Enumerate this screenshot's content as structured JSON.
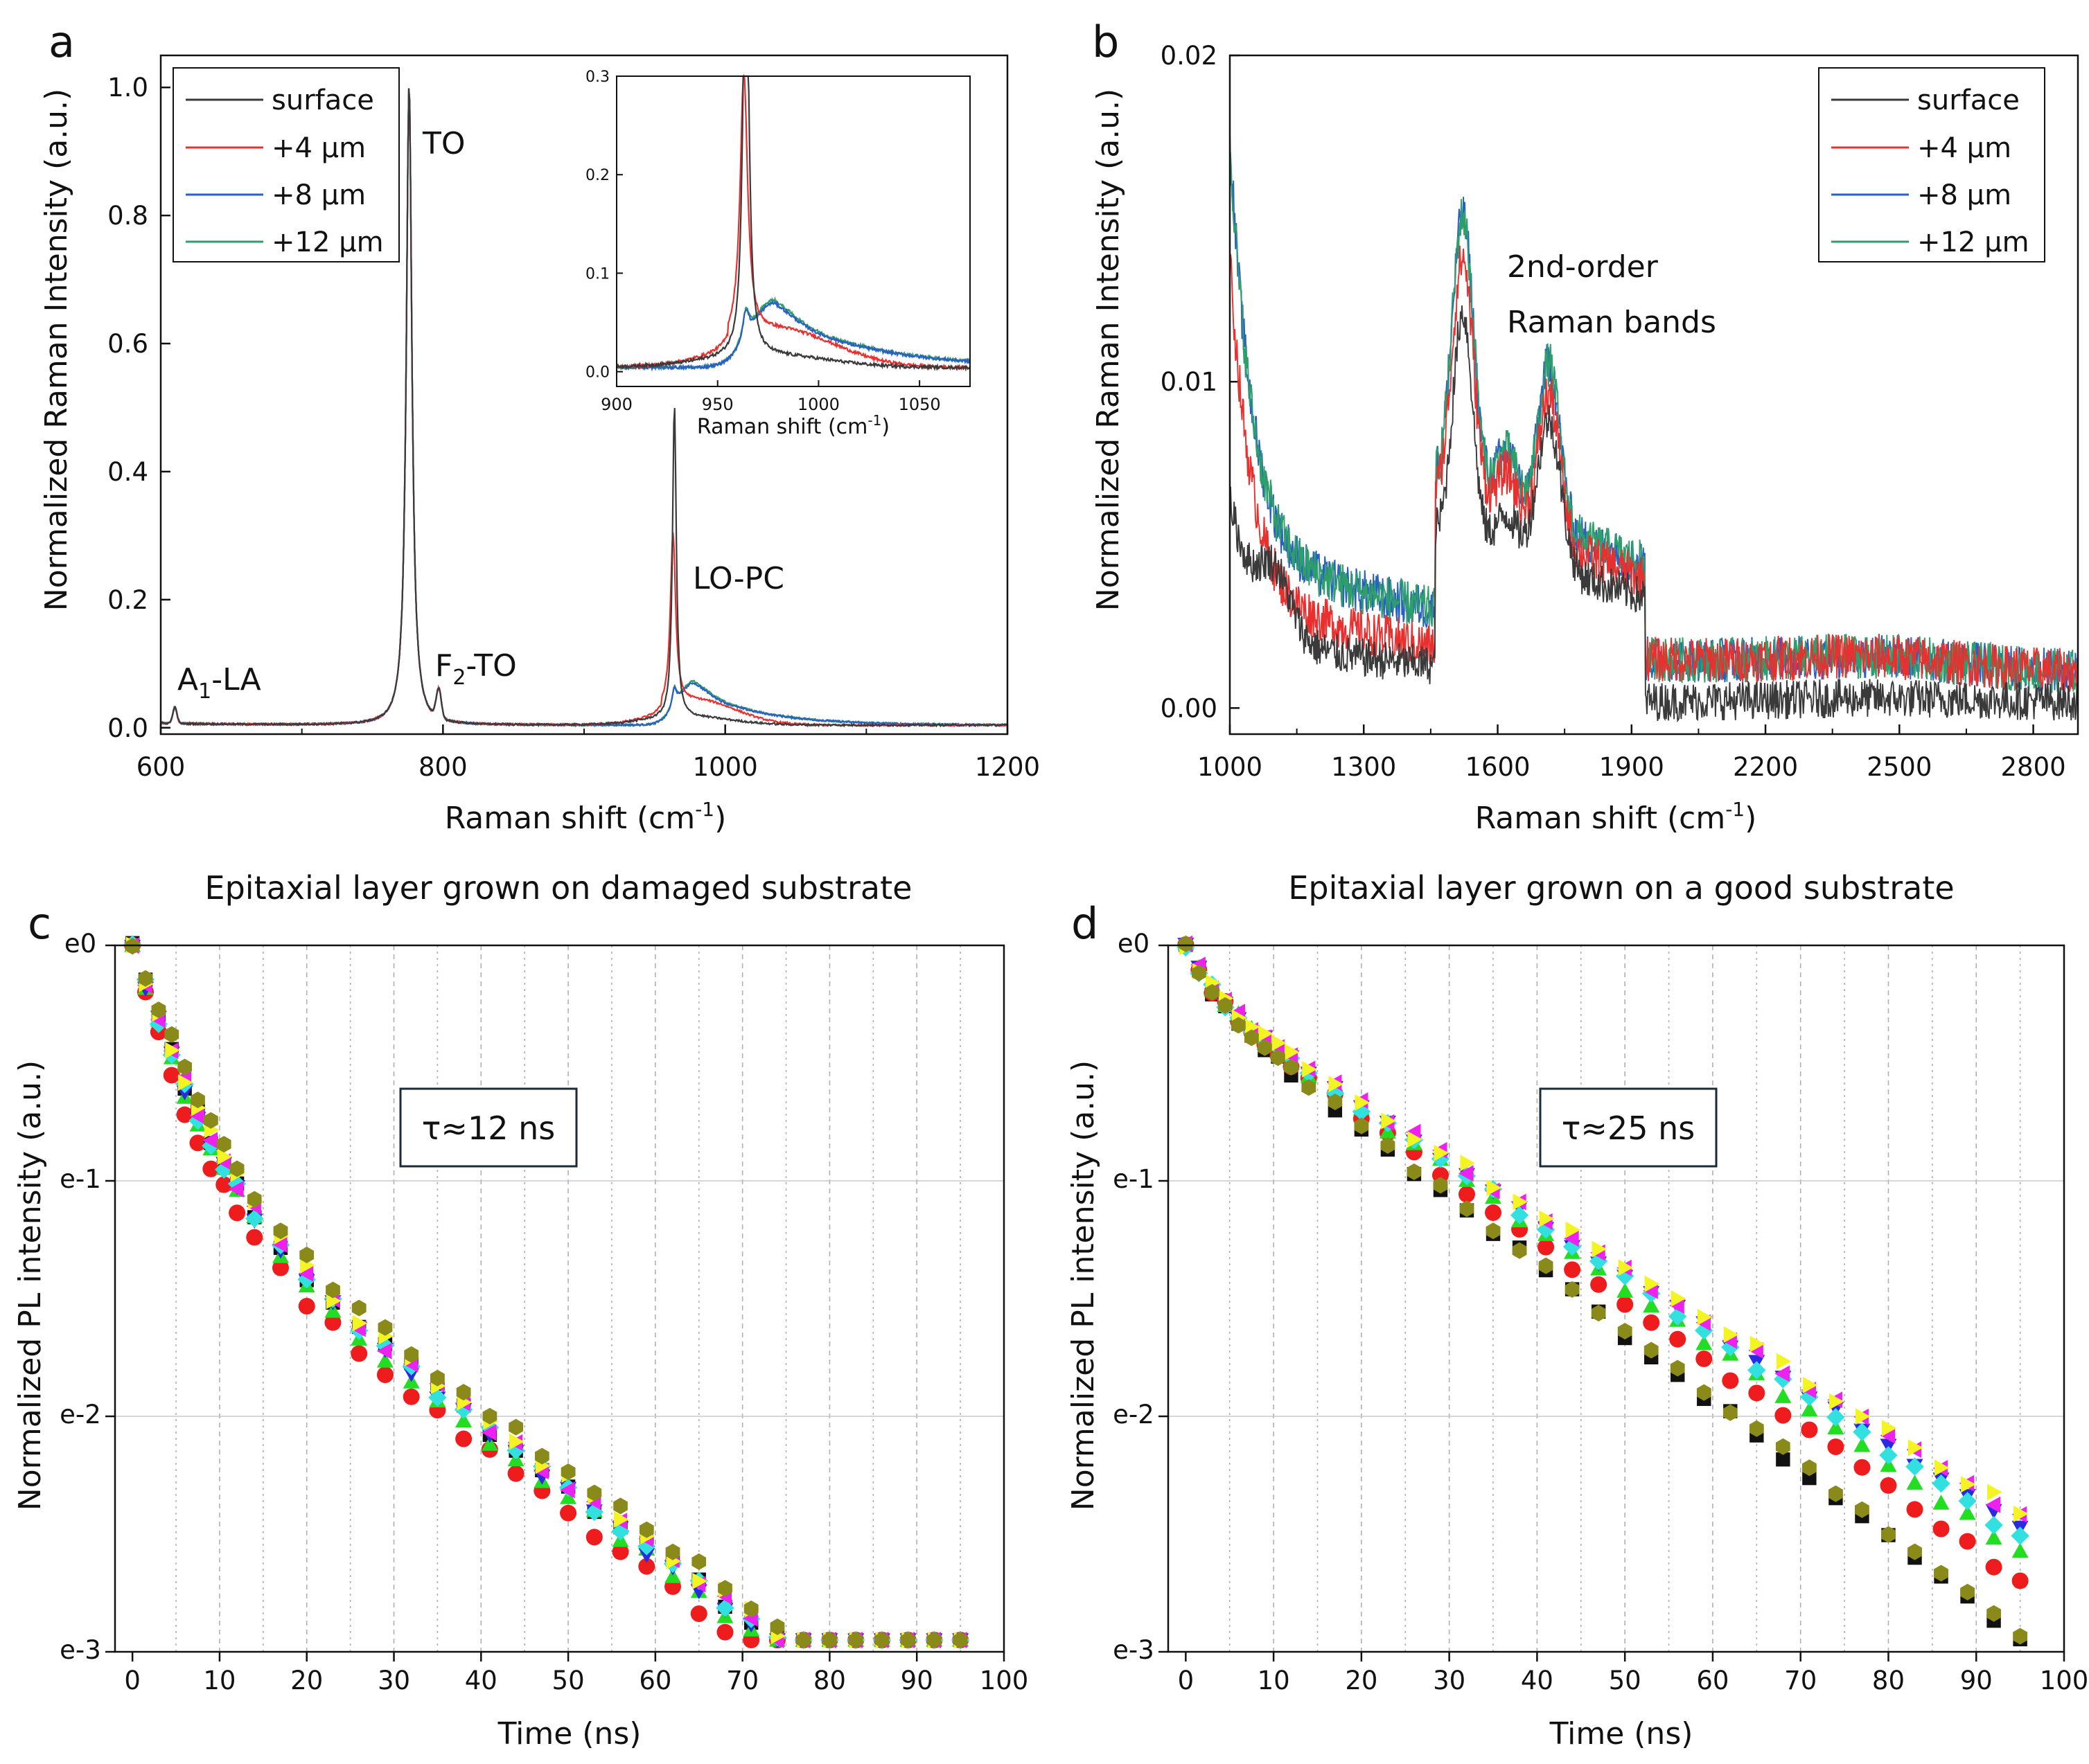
{
  "figure": {
    "panel_letters": [
      "a",
      "b",
      "c",
      "d"
    ]
  },
  "chart_data": [
    {
      "panel": "a",
      "type": "line",
      "xlabel": "Raman shift (cm",
      "xlabel_sup": "-1",
      "xlabel_end": ")",
      "ylabel": "Normalized Raman Intensity (a.u.)",
      "xlim": [
        600,
        1200
      ],
      "ylim": [
        -0.01,
        1.05
      ],
      "xticks": [
        "600",
        "800",
        "1000",
        "1200"
      ],
      "yticks": [
        "0.0",
        "0.2",
        "0.4",
        "0.6",
        "0.8",
        "1.0"
      ],
      "legend_position": "top-left",
      "series": [
        {
          "name": "surface",
          "color": "#3a3a3a"
        },
        {
          "name": "+4 μm",
          "color": "#e8302f"
        },
        {
          "name": "+8 μm",
          "color": "#2a5fc4"
        },
        {
          "name": "+12 μm",
          "color": "#2e9e6b"
        }
      ],
      "peaks": {
        "A1LA": {
          "x": 610,
          "y": 0.025,
          "label_main": "A",
          "label_sub": "1",
          "label_rest": "-LA"
        },
        "TO": {
          "x": 776,
          "y": 1.0,
          "label": "TO"
        },
        "F2TO": {
          "x": 797,
          "y": 0.045,
          "label_main": "F",
          "label_sub": "2",
          "label_rest": "-TO"
        },
        "LOPC": {
          "x": 964,
          "surface": 0.49,
          "plus4": 0.27,
          "plus8": 0.03,
          "plus12": 0.03,
          "label": "LO-PC"
        },
        "broad": {
          "x": 980,
          "plus8": 0.065,
          "plus12": 0.068,
          "plus4": 0.038
        }
      },
      "inset": {
        "xlabel": "Raman shift (cm",
        "xlabel_sup": "-1",
        "xlabel_end": ")",
        "xlim": [
          900,
          1075
        ],
        "ylim": [
          -0.015,
          0.3
        ],
        "xticks": [
          "900",
          "950",
          "1000",
          "1050"
        ],
        "yticks": [
          "0.0",
          "0.1",
          "0.2",
          "0.3"
        ]
      }
    },
    {
      "panel": "b",
      "type": "line",
      "xlabel": "Raman shift (cm",
      "xlabel_sup": "-1",
      "xlabel_end": ")",
      "ylabel": "Normalized Raman Intensity (a.u.)",
      "xlim": [
        1000,
        2900
      ],
      "ylim": [
        -0.0008,
        0.02
      ],
      "xticks": [
        "1000",
        "1300",
        "1600",
        "1900",
        "2200",
        "2500",
        "2800"
      ],
      "yticks": [
        "0.00",
        "0.01",
        "0.02"
      ],
      "legend_position": "top-right",
      "annotation": [
        "2nd-order",
        "Raman bands"
      ],
      "series": [
        {
          "name": "surface",
          "color": "#3a3a3a"
        },
        {
          "name": "+4 μm",
          "color": "#e8302f"
        },
        {
          "name": "+8 μm",
          "color": "#2a5fc4"
        },
        {
          "name": "+12 μm",
          "color": "#2e9e6b"
        }
      ]
    },
    {
      "panel": "c",
      "type": "scatter",
      "title": "Epitaxial layer grown on damaged substrate",
      "xlabel": "Time (ns)",
      "ylabel": "Normalized PL intensity (a.u.)",
      "xlim": [
        -2,
        100
      ],
      "ylim": [
        -3,
        0
      ],
      "yscale": "ln",
      "xticks": [
        "0",
        "10",
        "20",
        "30",
        "40",
        "50",
        "60",
        "70",
        "80",
        "90",
        "100"
      ],
      "yticks": [
        "e0",
        "e-1",
        "e-2",
        "e-3"
      ],
      "annotation": "τ≈12 ns",
      "model": {
        "fast_amp": 0.45,
        "fast_tau": 6,
        "slow_tau": 68
      },
      "series_offsets": [
        {
          "shape": "square",
          "color": "#111111",
          "offset": 0.02
        },
        {
          "shape": "circle",
          "color": "#ee1c1c",
          "offset": -0.09
        },
        {
          "shape": "triangle-up",
          "color": "#22dd22",
          "offset": -0.02
        },
        {
          "shape": "triangle-down",
          "color": "#2a2ae0",
          "offset": 0.0
        },
        {
          "shape": "diamond",
          "color": "#33e0e0",
          "offset": 0.01
        },
        {
          "shape": "triangle-left",
          "color": "#ee22ee",
          "offset": 0.03
        },
        {
          "shape": "triangle-right",
          "color": "#f4f422",
          "offset": 0.05
        },
        {
          "shape": "hexagon",
          "color": "#8a8a1a",
          "offset": 0.09
        }
      ]
    },
    {
      "panel": "d",
      "type": "scatter",
      "title": "Epitaxial layer grown on a good substrate",
      "xlabel": "Time (ns)",
      "ylabel": "Normalized PL intensity (a.u.)",
      "xlim": [
        -2,
        100
      ],
      "ylim": [
        -3,
        0
      ],
      "yscale": "ln",
      "xticks": [
        "0",
        "10",
        "20",
        "30",
        "40",
        "50",
        "60",
        "70",
        "80",
        "90",
        "100"
      ],
      "yticks": [
        "e0",
        "e-1",
        "e-2",
        "e-3"
      ],
      "annotation": "τ≈25 ns",
      "model": {
        "fast_amp": 0.2,
        "fast_tau": 4
      },
      "series_rates": [
        {
          "shape": "square",
          "color": "#111111",
          "slow_tau": 34.5
        },
        {
          "shape": "circle",
          "color": "#ee1c1c",
          "slow_tau": 38
        },
        {
          "shape": "triangle-up",
          "color": "#22dd22",
          "slow_tau": 40
        },
        {
          "shape": "triangle-down",
          "color": "#2a2ae0",
          "slow_tau": 41.5
        },
        {
          "shape": "diamond",
          "color": "#33e0e0",
          "slow_tau": 41
        },
        {
          "shape": "triangle-left",
          "color": "#ee22ee",
          "slow_tau": 42.5
        },
        {
          "shape": "triangle-right",
          "color": "#f4f422",
          "slow_tau": 43
        },
        {
          "shape": "hexagon",
          "color": "#8a8a1a",
          "slow_tau": 35
        }
      ]
    }
  ]
}
